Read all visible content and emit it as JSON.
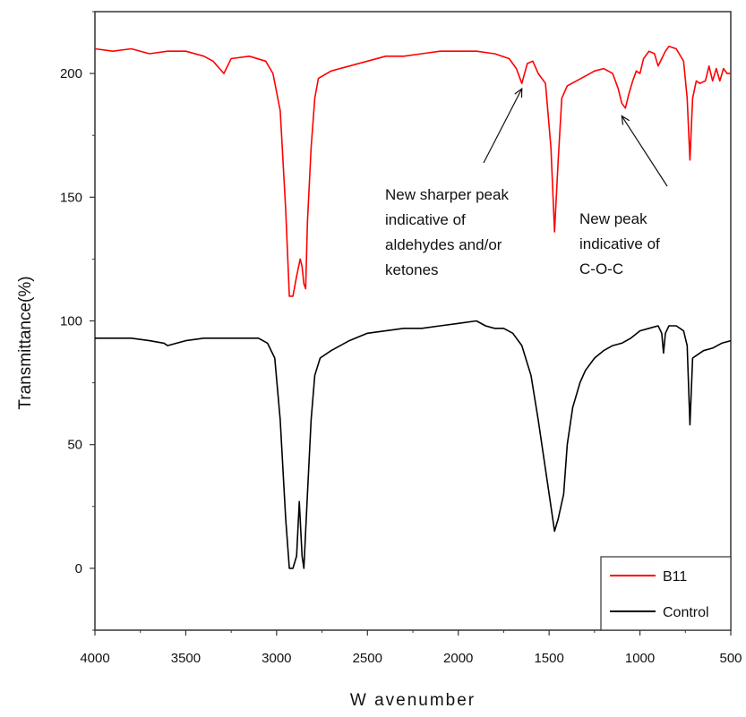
{
  "chart_data": {
    "type": "line",
    "title": "",
    "xlabel": "W avenumber",
    "ylabel": "Transmittance(%)",
    "xlim": [
      4000,
      500
    ],
    "ylim": [
      -25,
      225
    ],
    "x_ticks": [
      4000,
      3500,
      3000,
      2500,
      2000,
      1500,
      1000,
      500
    ],
    "x_tick_labels": [
      "4000",
      "3500",
      "3000",
      "2500",
      "2000",
      "1500",
      "1000",
      "500"
    ],
    "y_ticks": [
      0,
      50,
      100,
      150,
      200
    ],
    "y_tick_labels": [
      "0",
      "50",
      "100",
      "150",
      "200"
    ],
    "grid": false,
    "legend_position": "bottom-right",
    "series": [
      {
        "name": "B11",
        "color": "#ff0000",
        "points": [
          [
            4000,
            210
          ],
          [
            3900,
            209
          ],
          [
            3800,
            210
          ],
          [
            3700,
            208
          ],
          [
            3600,
            209
          ],
          [
            3500,
            209
          ],
          [
            3400,
            207
          ],
          [
            3350,
            205
          ],
          [
            3290,
            200
          ],
          [
            3250,
            206
          ],
          [
            3150,
            207
          ],
          [
            3060,
            205
          ],
          [
            3020,
            200
          ],
          [
            2980,
            185
          ],
          [
            2950,
            145
          ],
          [
            2930,
            110
          ],
          [
            2910,
            110
          ],
          [
            2890,
            118
          ],
          [
            2870,
            125
          ],
          [
            2860,
            122
          ],
          [
            2850,
            115
          ],
          [
            2840,
            113
          ],
          [
            2830,
            140
          ],
          [
            2810,
            170
          ],
          [
            2790,
            190
          ],
          [
            2770,
            198
          ],
          [
            2700,
            201
          ],
          [
            2600,
            203
          ],
          [
            2500,
            205
          ],
          [
            2400,
            207
          ],
          [
            2300,
            207
          ],
          [
            2200,
            208
          ],
          [
            2100,
            209
          ],
          [
            2000,
            209
          ],
          [
            1900,
            209
          ],
          [
            1800,
            208
          ],
          [
            1720,
            206
          ],
          [
            1680,
            202
          ],
          [
            1650,
            196
          ],
          [
            1620,
            204
          ],
          [
            1590,
            205
          ],
          [
            1560,
            200
          ],
          [
            1520,
            196
          ],
          [
            1490,
            170
          ],
          [
            1470,
            136
          ],
          [
            1450,
            165
          ],
          [
            1430,
            190
          ],
          [
            1400,
            195
          ],
          [
            1350,
            197
          ],
          [
            1300,
            199
          ],
          [
            1250,
            201
          ],
          [
            1200,
            202
          ],
          [
            1150,
            200
          ],
          [
            1120,
            194
          ],
          [
            1100,
            188
          ],
          [
            1080,
            186
          ],
          [
            1060,
            192
          ],
          [
            1040,
            197
          ],
          [
            1020,
            201
          ],
          [
            1000,
            200
          ],
          [
            980,
            206
          ],
          [
            950,
            209
          ],
          [
            920,
            208
          ],
          [
            900,
            203
          ],
          [
            880,
            206
          ],
          [
            860,
            209
          ],
          [
            840,
            211
          ],
          [
            800,
            210
          ],
          [
            760,
            205
          ],
          [
            740,
            190
          ],
          [
            725,
            165
          ],
          [
            710,
            190
          ],
          [
            690,
            197
          ],
          [
            670,
            196
          ],
          [
            640,
            197
          ],
          [
            620,
            203
          ],
          [
            600,
            197
          ],
          [
            580,
            202
          ],
          [
            560,
            197
          ],
          [
            540,
            202
          ],
          [
            520,
            200
          ],
          [
            500,
            200
          ]
        ]
      },
      {
        "name": "Control",
        "color": "#000000",
        "points": [
          [
            4000,
            93
          ],
          [
            3800,
            93
          ],
          [
            3700,
            92
          ],
          [
            3620,
            91
          ],
          [
            3600,
            90
          ],
          [
            3500,
            92
          ],
          [
            3400,
            93
          ],
          [
            3300,
            93
          ],
          [
            3200,
            93
          ],
          [
            3100,
            93
          ],
          [
            3050,
            91
          ],
          [
            3010,
            85
          ],
          [
            2980,
            60
          ],
          [
            2950,
            20
          ],
          [
            2930,
            0
          ],
          [
            2910,
            0
          ],
          [
            2890,
            5
          ],
          [
            2875,
            27
          ],
          [
            2860,
            5
          ],
          [
            2850,
            0
          ],
          [
            2830,
            30
          ],
          [
            2810,
            60
          ],
          [
            2790,
            78
          ],
          [
            2760,
            85
          ],
          [
            2700,
            88
          ],
          [
            2600,
            92
          ],
          [
            2500,
            95
          ],
          [
            2400,
            96
          ],
          [
            2300,
            97
          ],
          [
            2200,
            97
          ],
          [
            2100,
            98
          ],
          [
            2000,
            99
          ],
          [
            1900,
            100
          ],
          [
            1850,
            98
          ],
          [
            1800,
            97
          ],
          [
            1750,
            97
          ],
          [
            1700,
            95
          ],
          [
            1650,
            90
          ],
          [
            1600,
            78
          ],
          [
            1560,
            60
          ],
          [
            1520,
            40
          ],
          [
            1490,
            25
          ],
          [
            1470,
            15
          ],
          [
            1450,
            20
          ],
          [
            1420,
            30
          ],
          [
            1400,
            50
          ],
          [
            1370,
            65
          ],
          [
            1330,
            75
          ],
          [
            1300,
            80
          ],
          [
            1250,
            85
          ],
          [
            1200,
            88
          ],
          [
            1150,
            90
          ],
          [
            1100,
            91
          ],
          [
            1050,
            93
          ],
          [
            1000,
            96
          ],
          [
            950,
            97
          ],
          [
            900,
            98
          ],
          [
            880,
            95
          ],
          [
            870,
            87
          ],
          [
            860,
            95
          ],
          [
            840,
            98
          ],
          [
            800,
            98
          ],
          [
            760,
            96
          ],
          [
            740,
            90
          ],
          [
            725,
            58
          ],
          [
            710,
            85
          ],
          [
            690,
            86
          ],
          [
            650,
            88
          ],
          [
            600,
            89
          ],
          [
            550,
            91
          ],
          [
            500,
            92
          ]
        ]
      }
    ],
    "annotations": [
      {
        "lines": [
          "New sharper peak",
          "indicative of",
          "aldehydes and/or",
          "ketones"
        ],
        "target": [
          1650,
          196
        ]
      },
      {
        "lines": [
          "New peak",
          "indicative of",
          "C-O-C"
        ],
        "target": [
          1100,
          185
        ]
      }
    ]
  }
}
